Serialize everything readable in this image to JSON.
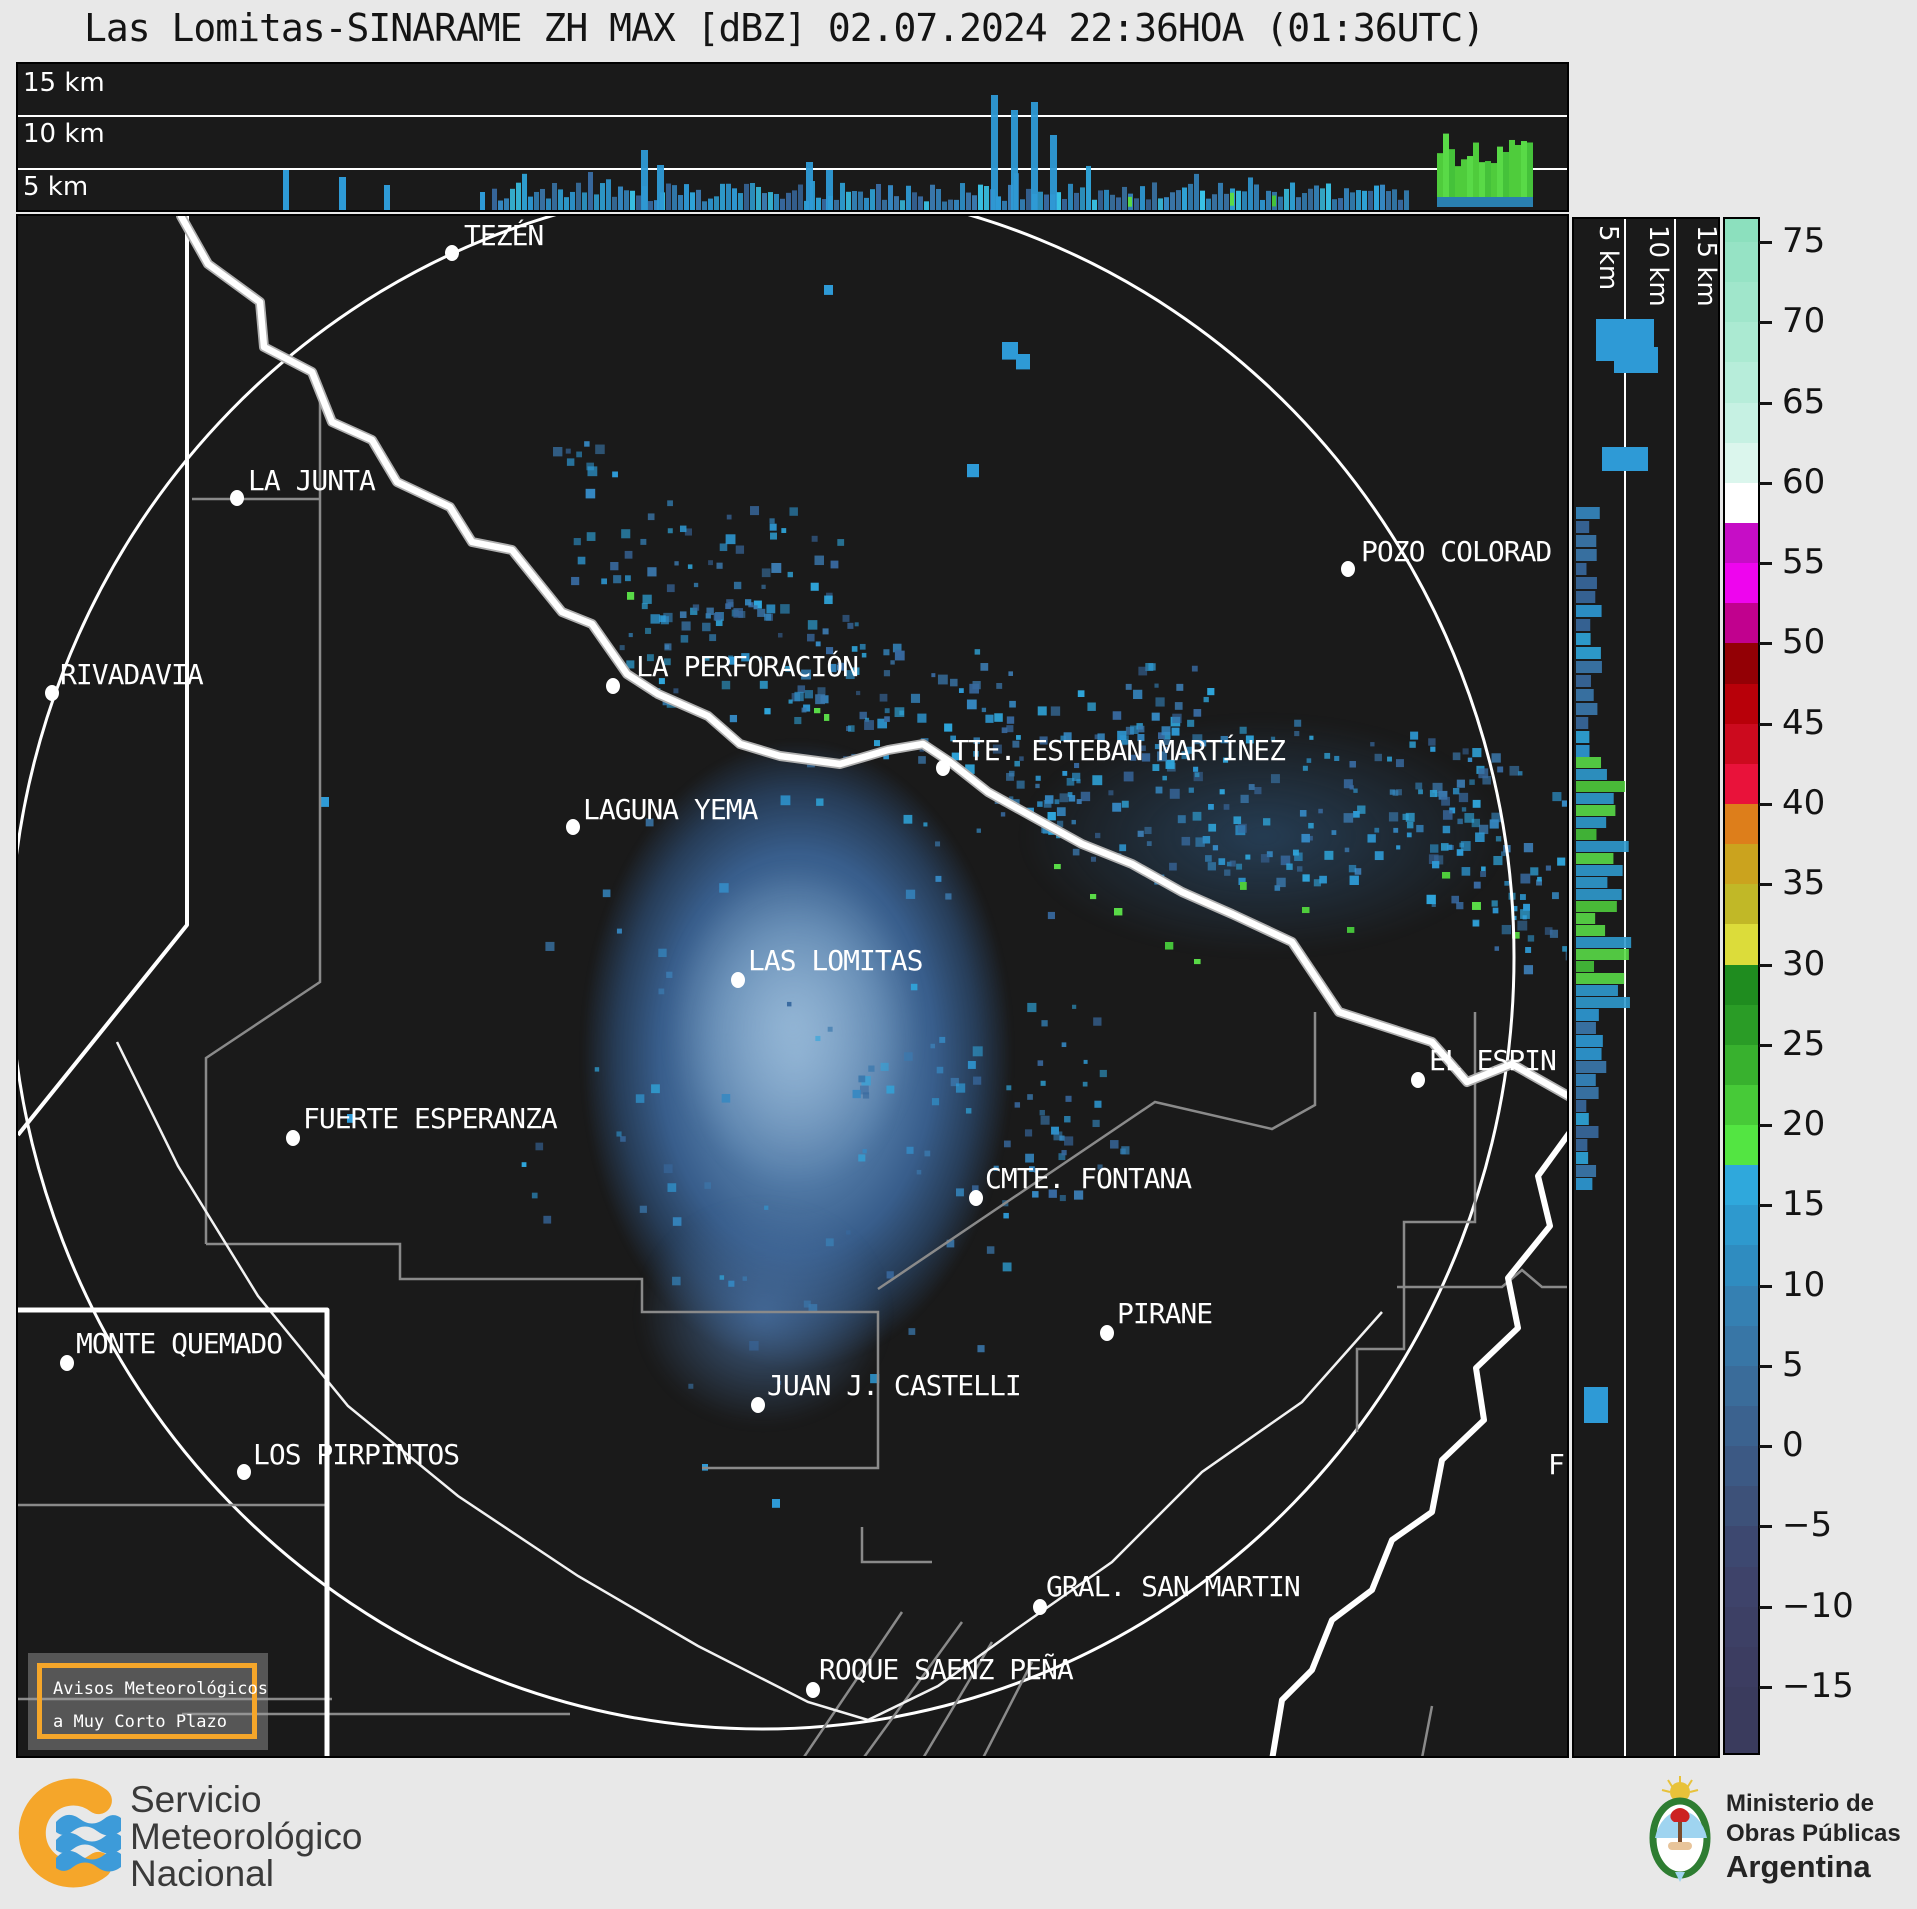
{
  "title": "Las Lomitas-SINARAME ZH MAX [dBZ] 02.07.2024 22:36HOA (01:36UTC)",
  "top_profile": {
    "labels": [
      "15 km",
      "10 km",
      "5 km"
    ]
  },
  "right_profile": {
    "labels": [
      "5 km",
      "10 km",
      "15 km"
    ]
  },
  "colorbar": {
    "unit": "dBZ",
    "ticks": [
      {
        "v": 75,
        "label": "75"
      },
      {
        "v": 70,
        "label": "70"
      },
      {
        "v": 65,
        "label": "65"
      },
      {
        "v": 60,
        "label": "60"
      },
      {
        "v": 55,
        "label": "55"
      },
      {
        "v": 50,
        "label": "50"
      },
      {
        "v": 45,
        "label": "45"
      },
      {
        "v": 40,
        "label": "40"
      },
      {
        "v": 35,
        "label": "35"
      },
      {
        "v": 30,
        "label": "30"
      },
      {
        "v": 25,
        "label": "25"
      },
      {
        "v": 20,
        "label": "20"
      },
      {
        "v": 15,
        "label": "15"
      },
      {
        "v": 10,
        "label": "10"
      },
      {
        "v": 5,
        "label": "5"
      },
      {
        "v": 0,
        "label": "0"
      },
      {
        "v": -5,
        "label": "−5"
      },
      {
        "v": -10,
        "label": "−10"
      },
      {
        "v": -15,
        "label": "−15"
      }
    ],
    "segments": [
      {
        "from": 76.5,
        "to": 75,
        "color": "#8CE0BE"
      },
      {
        "from": 75,
        "to": 72.5,
        "color": "#96E3C5"
      },
      {
        "from": 72.5,
        "to": 70,
        "color": "#A0E6CB"
      },
      {
        "from": 70,
        "to": 67.5,
        "color": "#ABEAD2"
      },
      {
        "from": 67.5,
        "to": 65,
        "color": "#B7EDDA"
      },
      {
        "from": 65,
        "to": 62.5,
        "color": "#C6F1E3"
      },
      {
        "from": 62.5,
        "to": 60,
        "color": "#DBF6ED"
      },
      {
        "from": 60,
        "to": 57.5,
        "color": "#FFFFFF"
      },
      {
        "from": 57.5,
        "to": 55,
        "color": "#C60DC6"
      },
      {
        "from": 55,
        "to": 52.5,
        "color": "#EE05EE"
      },
      {
        "from": 52.5,
        "to": 50,
        "color": "#C1018E"
      },
      {
        "from": 50,
        "to": 47.5,
        "color": "#930005"
      },
      {
        "from": 47.5,
        "to": 45,
        "color": "#B80009"
      },
      {
        "from": 45,
        "to": 42.5,
        "color": "#CC0A1E"
      },
      {
        "from": 42.5,
        "to": 40,
        "color": "#E9123A"
      },
      {
        "from": 40,
        "to": 37.5,
        "color": "#DD7E1B"
      },
      {
        "from": 37.5,
        "to": 35,
        "color": "#CBA31E"
      },
      {
        "from": 35,
        "to": 32.5,
        "color": "#C1B827"
      },
      {
        "from": 32.5,
        "to": 30,
        "color": "#DCDC3A"
      },
      {
        "from": 30,
        "to": 27.5,
        "color": "#1F8C1F"
      },
      {
        "from": 27.5,
        "to": 25,
        "color": "#2A9C26"
      },
      {
        "from": 25,
        "to": 22.5,
        "color": "#38B12E"
      },
      {
        "from": 22.5,
        "to": 20,
        "color": "#47CA38"
      },
      {
        "from": 20,
        "to": 17.5,
        "color": "#53E542"
      },
      {
        "from": 17.5,
        "to": 15,
        "color": "#2FA8DC"
      },
      {
        "from": 15,
        "to": 12.5,
        "color": "#2E99CE"
      },
      {
        "from": 12.5,
        "to": 10,
        "color": "#2F8CC0"
      },
      {
        "from": 10,
        "to": 7.5,
        "color": "#3580B2"
      },
      {
        "from": 7.5,
        "to": 5,
        "color": "#3876A6"
      },
      {
        "from": 5,
        "to": 2.5,
        "color": "#3A6C9A"
      },
      {
        "from": 2.5,
        "to": 0,
        "color": "#3B628F"
      },
      {
        "from": 0,
        "to": -2.5,
        "color": "#3C5984"
      },
      {
        "from": -2.5,
        "to": -5,
        "color": "#3D5179"
      },
      {
        "from": -5,
        "to": -7.5,
        "color": "#3D4870"
      },
      {
        "from": -7.5,
        "to": -10,
        "color": "#3E436A"
      },
      {
        "from": -10,
        "to": -12.5,
        "color": "#3D4065"
      },
      {
        "from": -12.5,
        "to": -15,
        "color": "#3C3D61"
      },
      {
        "from": -15,
        "to": -19.2,
        "color": "#3A3B5D"
      }
    ]
  },
  "map": {
    "radar_site": "LAS LOMITAS",
    "cities": [
      {
        "name": "TEZÉN",
        "dot": [
          436,
          39
        ],
        "label": [
          448,
          5
        ]
      },
      {
        "name": "LA JUNTA",
        "dot": [
          221,
          284
        ],
        "label": [
          232,
          250
        ]
      },
      {
        "name": "RIVADAVIA",
        "dot": [
          36,
          479
        ],
        "label": [
          44,
          444
        ]
      },
      {
        "name": "LA PERFORACIÓN",
        "dot": [
          597,
          472
        ],
        "label": [
          620,
          436
        ]
      },
      {
        "name": "LAGUNA YEMA",
        "dot": [
          557,
          613
        ],
        "label": [
          567,
          579
        ]
      },
      {
        "name": "TTE. ESTEBAN MARTÍNEZ",
        "dot": [
          927,
          554
        ],
        "label": [
          936,
          520
        ]
      },
      {
        "name": "POZO COLORAD",
        "dot": [
          1332,
          355
        ],
        "label": [
          1345,
          321
        ]
      },
      {
        "name": "LAS LOMITAS",
        "dot": [
          722,
          766
        ],
        "label": [
          732,
          730
        ]
      },
      {
        "name": "EL ESPIN",
        "dot": [
          1402,
          866
        ],
        "label": [
          1413,
          830
        ]
      },
      {
        "name": "FUERTE ESPERANZA",
        "dot": [
          277,
          924
        ],
        "label": [
          287,
          888
        ]
      },
      {
        "name": "CMTE. FONTANA",
        "dot": [
          960,
          984
        ],
        "label": [
          969,
          948
        ]
      },
      {
        "name": "PIRANE",
        "dot": [
          1091,
          1119
        ],
        "label": [
          1101,
          1083
        ]
      },
      {
        "name": "MONTE QUEMADO",
        "dot": [
          51,
          1149
        ],
        "label": [
          60,
          1113
        ]
      },
      {
        "name": "JUAN J. CASTELLI",
        "dot": [
          742,
          1191
        ],
        "label": [
          751,
          1155
        ]
      },
      {
        "name": "LOS PIRPINTOS",
        "dot": [
          228,
          1258
        ],
        "label": [
          237,
          1224
        ]
      },
      {
        "name": "GRAL. SAN MARTIN",
        "dot": [
          1024,
          1393
        ],
        "label": [
          1030,
          1356
        ]
      },
      {
        "name": "ROQUE SAENZ PEÑA",
        "dot": [
          797,
          1476
        ],
        "label": [
          803,
          1439
        ]
      },
      {
        "name": "F",
        "dot": null,
        "label": [
          1532,
          1234
        ]
      }
    ],
    "warning_box": {
      "lines": [
        "Avisos Meteorológicos",
        "a Muy Corto Plazo"
      ],
      "border_color": "#F5A62A"
    }
  },
  "footer": {
    "smn_name_lines": [
      "Servicio",
      "Meteorológico",
      "Nacional"
    ],
    "smn_logo_colors": {
      "crescent": "#F5A62A",
      "waves": "#3D9BD9"
    },
    "ministry_lines": [
      "Ministerio de",
      "Obras Públicas"
    ],
    "ministry_country": "Argentina"
  },
  "chart_data": {
    "type": "heatmap",
    "title": "Las Lomitas-SINARAME ZH MAX [dBZ] 02.07.2024 22:36HOA (01:36UTC)",
    "variable": "ZH MAX (max radar reflectivity)",
    "unit": "dBZ",
    "colorbar_range": [
      -15,
      75
    ],
    "colorbar_tick_step": 5,
    "profile_height_ticks_km": [
      5,
      10,
      15
    ],
    "legend_position": "right"
  }
}
